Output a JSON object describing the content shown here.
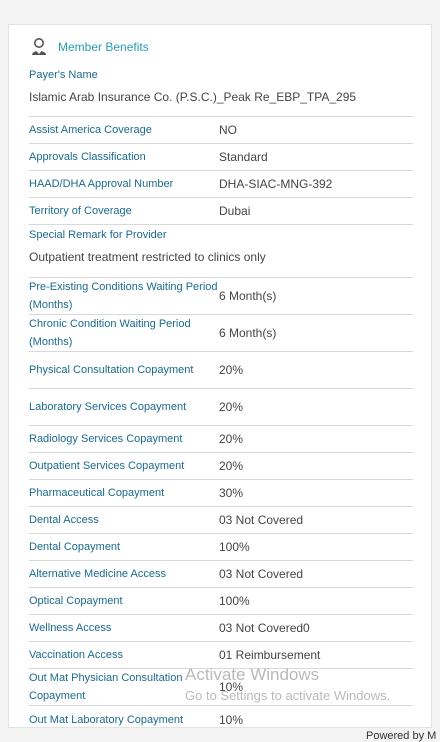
{
  "header": {
    "title": "Member Benefits",
    "icon": "user-icon"
  },
  "rows": [
    {
      "label": "Payer's Name",
      "value": "Islamic Arab Insurance Co. (P.S.C.)_Peak Re_EBP_TPA_295"
    },
    {
      "label": "Assist America Coverage",
      "value": "NO"
    },
    {
      "label": "Approvals Classification",
      "value": "Standard"
    },
    {
      "label": "HAAD/DHA Approval Number",
      "value": "DHA-SIAC-MNG-392"
    },
    {
      "label": "Territory of Coverage",
      "value": "Dubai"
    },
    {
      "label": "Special Remark for Provider",
      "value": "Outpatient treatment restricted to clinics only"
    },
    {
      "label": "Pre-Existing Conditions Waiting Period (Months)",
      "value": "6 Month(s)"
    },
    {
      "label": "Chronic Condition Waiting Period (Months)",
      "value": "6 Month(s)"
    },
    {
      "label": "Physical Consultation Copayment",
      "value": "20%"
    },
    {
      "label": "Laboratory Services Copayment",
      "value": "20%"
    },
    {
      "label": "Radiology Services Copayment",
      "value": "20%"
    },
    {
      "label": "Outpatient Services Copayment",
      "value": "20%"
    },
    {
      "label": "Pharmaceutical Copayment",
      "value": "30%"
    },
    {
      "label": "Dental Access",
      "value": "03 Not Covered"
    },
    {
      "label": "Dental Copayment",
      "value": "100%"
    },
    {
      "label": "Alternative Medicine Access",
      "value": "03 Not Covered"
    },
    {
      "label": "Optical Copayment",
      "value": "100%"
    },
    {
      "label": "Wellness Access",
      "value": "03 Not Covered0"
    },
    {
      "label": "Vaccination Access",
      "value": "01 Reimbursement"
    },
    {
      "label": "Out Mat Physician Consultation Copayment",
      "value": "10%"
    },
    {
      "label": "Out Mat Laboratory Copayment",
      "value": "10%"
    }
  ],
  "watermark": {
    "line1": "Activate Windows",
    "line2": "Go to Settings to activate Windows."
  },
  "footer": {
    "powered": "Powered by M"
  },
  "colors": {
    "label": "#1b6a8d",
    "header": "#2a9bb5",
    "value": "#444444"
  }
}
